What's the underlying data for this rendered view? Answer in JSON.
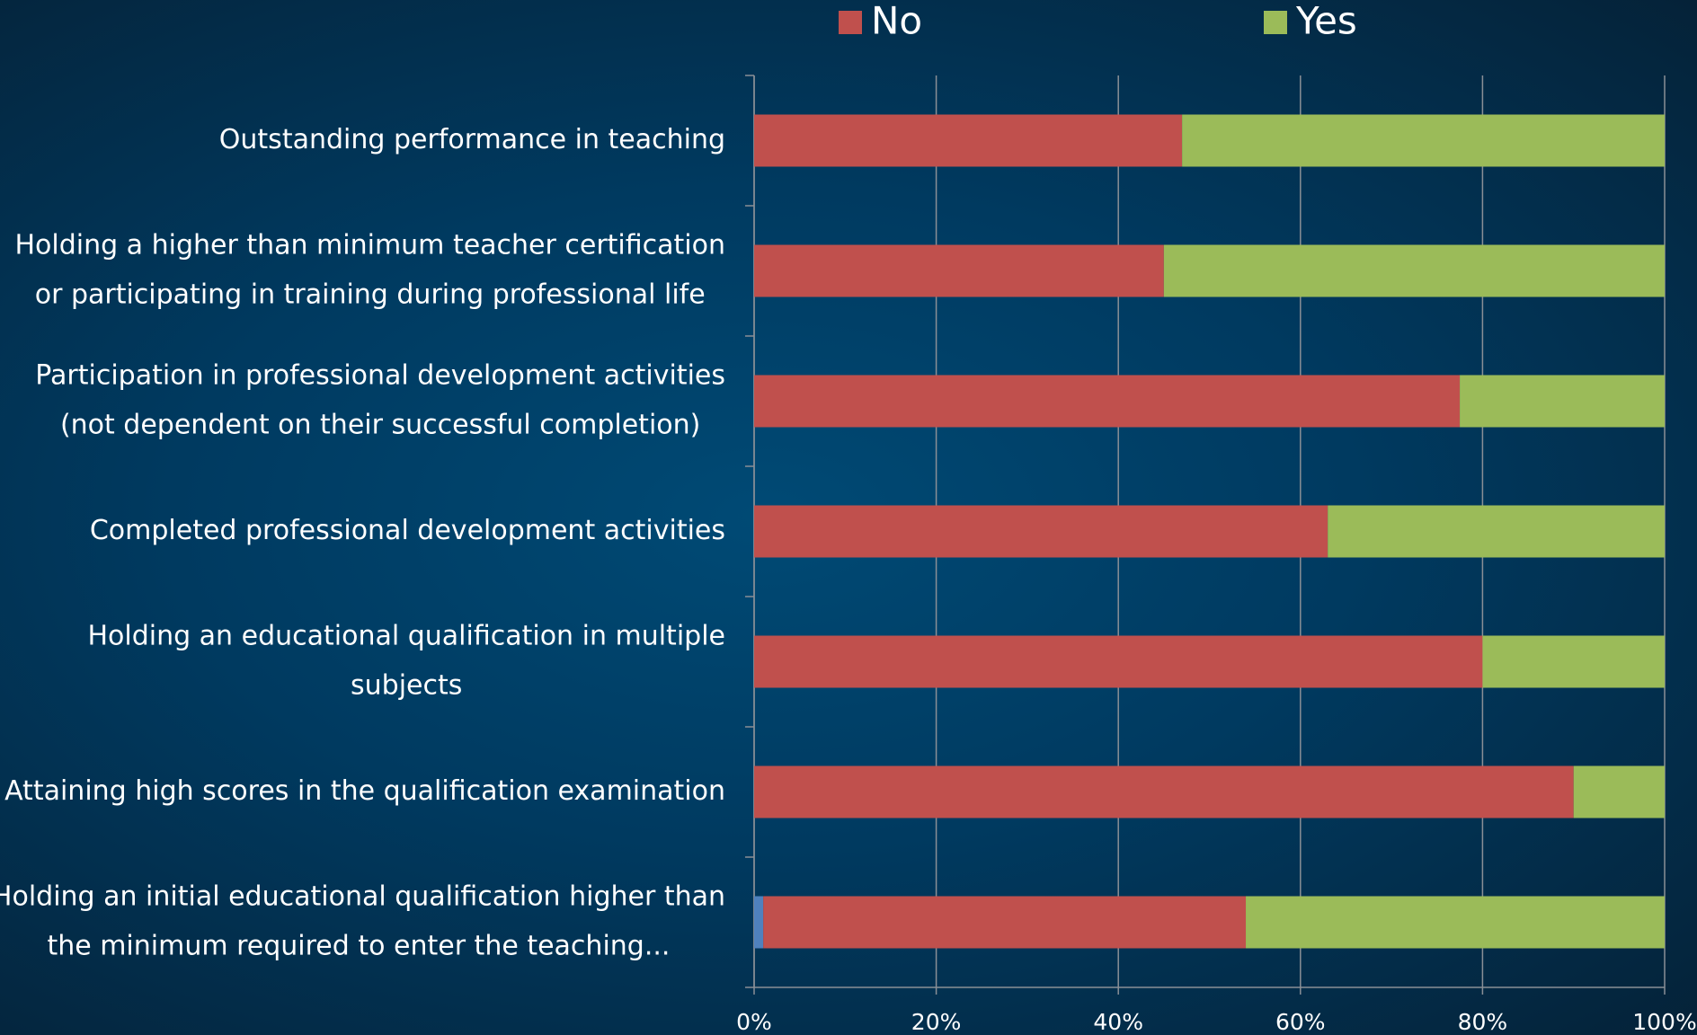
{
  "chart_data": {
    "type": "stacked-barh",
    "categories": [
      [
        "Outstanding performance in teaching"
      ],
      [
        "Holding a higher than minimum  teacher certification",
        "or participating in training during professional life"
      ],
      [
        "Participation in professional development activities",
        "(not dependent on their successful completion)"
      ],
      [
        "Completed professional development activities"
      ],
      [
        "Holding an educational qualification in multiple",
        "subjects"
      ],
      [
        "Attaining high scores in the qualification examination"
      ],
      [
        "Holding an initial educational qualification higher than",
        "the minimum required to enter the teaching..."
      ]
    ],
    "series": [
      {
        "color": "#4f81bd",
        "values": [
          0,
          0,
          0,
          0,
          0,
          0,
          1
        ]
      },
      {
        "name": "No",
        "color": "#c0504d",
        "values": [
          47,
          45,
          77.5,
          63,
          80,
          90,
          53
        ]
      },
      {
        "name": "Yes",
        "color": "#9bbb59",
        "values": [
          53,
          55,
          22.5,
          37,
          20,
          10,
          46
        ]
      }
    ],
    "xlim": [
      0,
      100
    ],
    "xticks": [
      {
        "value": 0,
        "label": "0%"
      },
      {
        "value": 20,
        "label": "20%"
      },
      {
        "value": 40,
        "label": "40%"
      },
      {
        "value": 60,
        "label": "60%"
      },
      {
        "value": 80,
        "label": "80%"
      },
      {
        "value": 100,
        "label": "100%"
      }
    ],
    "grid": true,
    "legend": "top"
  }
}
